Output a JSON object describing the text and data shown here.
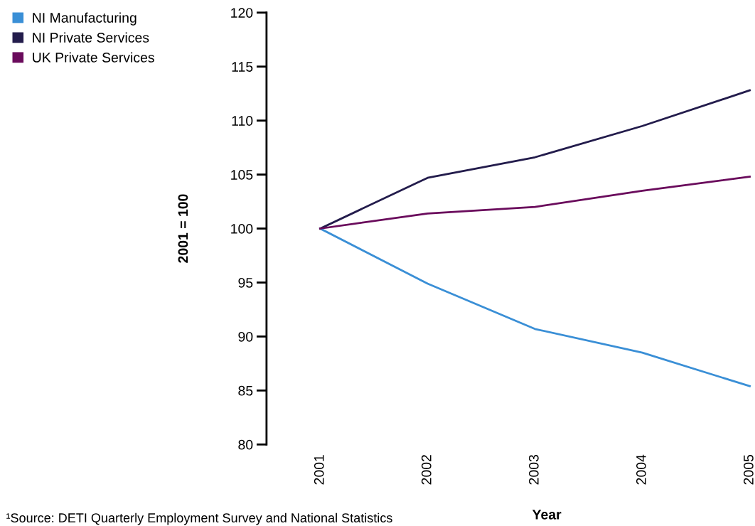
{
  "chart_data": {
    "type": "line",
    "xlabel": "Year",
    "ylabel": "2001 = 100",
    "categories": [
      "2001",
      "2002",
      "2003",
      "2004",
      "2005"
    ],
    "series": [
      {
        "name": "NI Manufacturing",
        "color": "#3a8fd6",
        "values": [
          100,
          94.9,
          90.7,
          88.5,
          85.4
        ]
      },
      {
        "name": "NI Private Services",
        "color": "#231c4c",
        "values": [
          100,
          104.7,
          106.6,
          109.5,
          112.8
        ]
      },
      {
        "name": "UK Private Services",
        "color": "#6a0b5c",
        "values": [
          100,
          101.4,
          102.0,
          103.5,
          104.8
        ]
      }
    ],
    "ylim": [
      80,
      120
    ],
    "yticks": [
      80,
      85,
      90,
      95,
      100,
      105,
      110,
      115,
      120
    ],
    "grid": false,
    "legend": "top left",
    "marker": "none",
    "line_style": "solid",
    "annotations": [
      "¹Source: DETI Quarterly Employment Survey and National Statistics"
    ]
  }
}
